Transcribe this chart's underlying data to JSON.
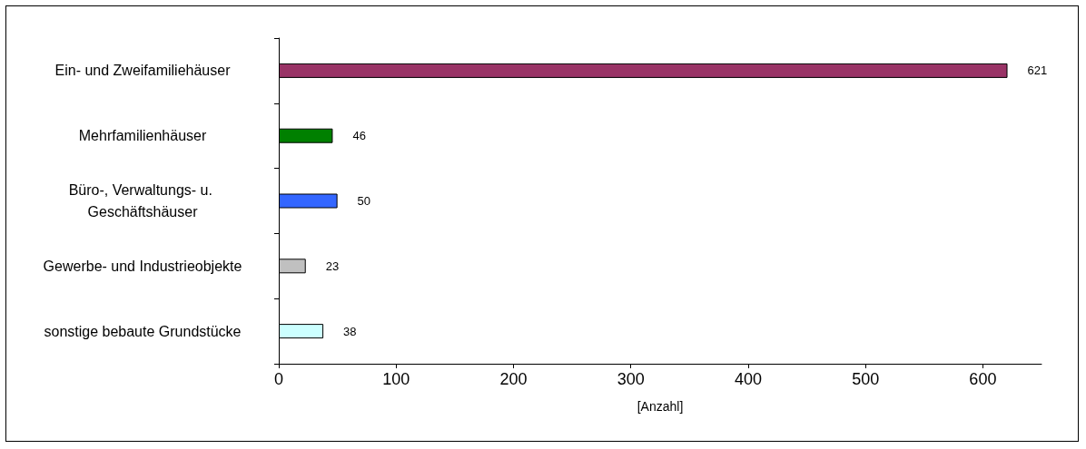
{
  "chart_data": {
    "type": "bar",
    "orientation": "horizontal",
    "xlabel": "[Anzahl]",
    "categories": [
      "Ein- und Zweifamiliehäuser",
      "Mehrfamilienhäuser",
      "Büro-, Verwaltungs- u. Geschäftshäuser",
      "Gewerbe- und Industrieobjekte",
      "sonstige bebaute Grundstücke"
    ],
    "values": [
      621,
      46,
      50,
      23,
      38
    ],
    "colors": [
      "#993366",
      "#008000",
      "#3366ff",
      "#c0c0c0",
      "#ccffff"
    ],
    "xlim": [
      0,
      650
    ],
    "xticks": [
      0,
      100,
      200,
      300,
      400,
      500,
      600
    ],
    "data_labels": true
  }
}
